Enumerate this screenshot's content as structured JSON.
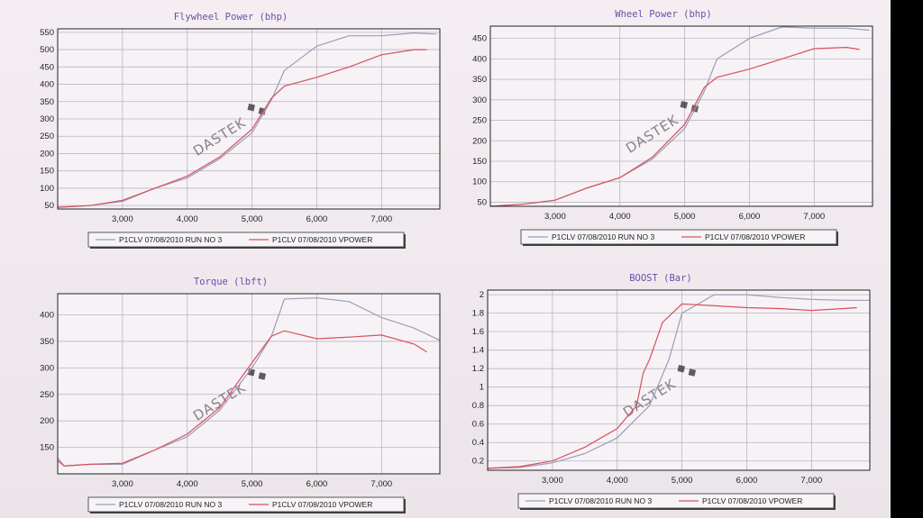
{
  "watermark": "DASTEK",
  "series_colors": {
    "P1CLV 07/08/2010 RUN NO 3": "#9a9fb8",
    "P1CLV 07/08/2010 VPOWER": "#d8505a"
  },
  "chart_data": [
    {
      "type": "line",
      "title": "Flywheel Power (bhp)",
      "xlabel": "",
      "ylabel": "",
      "xlim": [
        2000,
        7900
      ],
      "ylim": [
        40,
        560
      ],
      "x_ticks": [
        3000,
        4000,
        5000,
        6000,
        7000
      ],
      "x_tick_labels": [
        "3,000",
        "4,000",
        "5,000",
        "6,000",
        "7,000"
      ],
      "y_ticks": [
        50,
        100,
        150,
        200,
        250,
        300,
        350,
        400,
        450,
        500,
        550
      ],
      "y_tick_labels": [
        "50",
        "100",
        "150",
        "200",
        "250",
        "300",
        "350",
        "400",
        "450",
        "500",
        "550"
      ],
      "grid": true,
      "legend_position": "bottom",
      "series": [
        {
          "name": "P1CLV 07/08/2010 RUN NO 3",
          "x": [
            2000,
            2500,
            3000,
            3500,
            4000,
            4500,
            5000,
            5300,
            5500,
            6000,
            6500,
            7000,
            7500,
            7850
          ],
          "y": [
            45,
            50,
            62,
            100,
            130,
            185,
            260,
            355,
            440,
            510,
            540,
            540,
            548,
            545
          ]
        },
        {
          "name": "P1CLV 07/08/2010 VPOWER",
          "x": [
            2000,
            2500,
            3000,
            3500,
            4000,
            4500,
            5000,
            5300,
            5500,
            6000,
            6500,
            7000,
            7500,
            7700
          ],
          "y": [
            45,
            50,
            65,
            100,
            135,
            190,
            270,
            360,
            395,
            420,
            450,
            485,
            500,
            500
          ]
        }
      ]
    },
    {
      "type": "line",
      "title": "Wheel Power (bhp)",
      "xlabel": "",
      "ylabel": "",
      "xlim": [
        2000,
        7900
      ],
      "ylim": [
        40,
        480
      ],
      "x_ticks": [
        3000,
        4000,
        5000,
        6000,
        7000
      ],
      "x_tick_labels": [
        "3,000",
        "4,000",
        "5,000",
        "6,000",
        "7,000"
      ],
      "y_ticks": [
        50,
        100,
        150,
        200,
        250,
        300,
        350,
        400,
        450
      ],
      "y_tick_labels": [
        "50",
        "100",
        "150",
        "200",
        "250",
        "300",
        "350",
        "400",
        "450"
      ],
      "grid": true,
      "legend_position": "bottom",
      "series": [
        {
          "name": "P1CLV 07/08/2010 RUN NO 3",
          "x": [
            2000,
            2500,
            3000,
            3500,
            4000,
            4500,
            5000,
            5300,
            5500,
            6000,
            6500,
            7000,
            7500,
            7850
          ],
          "y": [
            40,
            45,
            55,
            85,
            110,
            155,
            230,
            320,
            400,
            450,
            478,
            475,
            475,
            470
          ]
        },
        {
          "name": "P1CLV 07/08/2010 VPOWER",
          "x": [
            2000,
            2500,
            3000,
            3500,
            4000,
            4500,
            5000,
            5300,
            5500,
            6000,
            6500,
            7000,
            7500,
            7700
          ],
          "y": [
            40,
            45,
            55,
            85,
            110,
            160,
            240,
            330,
            355,
            375,
            400,
            425,
            428,
            423
          ]
        }
      ]
    },
    {
      "type": "line",
      "title": "Torque (lbft)",
      "xlabel": "",
      "ylabel": "",
      "xlim": [
        2000,
        7900
      ],
      "ylim": [
        100,
        440
      ],
      "x_ticks": [
        3000,
        4000,
        5000,
        6000,
        7000
      ],
      "x_tick_labels": [
        "3,000",
        "4,000",
        "5,000",
        "6,000",
        "7,000"
      ],
      "y_ticks": [
        150,
        200,
        250,
        300,
        350,
        400
      ],
      "y_tick_labels": [
        "150",
        "200",
        "250",
        "300",
        "350",
        "400"
      ],
      "grid": true,
      "legend_position": "bottom",
      "series": [
        {
          "name": "P1CLV 07/08/2010 RUN NO 3",
          "x": [
            2000,
            2100,
            2500,
            3000,
            3500,
            4000,
            4500,
            5000,
            5300,
            5500,
            6000,
            6500,
            7000,
            7500,
            7900
          ],
          "y": [
            130,
            115,
            118,
            118,
            145,
            170,
            220,
            300,
            360,
            430,
            432,
            425,
            395,
            375,
            352
          ]
        },
        {
          "name": "P1CLV 07/08/2010 VPOWER",
          "x": [
            2000,
            2100,
            2500,
            3000,
            3500,
            4000,
            4500,
            5000,
            5300,
            5500,
            6000,
            6500,
            7000,
            7500,
            7700
          ],
          "y": [
            125,
            115,
            118,
            120,
            145,
            175,
            225,
            310,
            360,
            370,
            355,
            358,
            362,
            345,
            330
          ]
        }
      ]
    },
    {
      "type": "line",
      "title": "BOOST (Bar)",
      "xlabel": "",
      "ylabel": "",
      "xlim": [
        2000,
        7900
      ],
      "ylim": [
        0.1,
        2.05
      ],
      "x_ticks": [
        3000,
        4000,
        5000,
        6000,
        7000
      ],
      "x_tick_labels": [
        "3,000",
        "4,000",
        "5,000",
        "6,000",
        "7,000"
      ],
      "y_ticks": [
        0.2,
        0.4,
        0.6,
        0.8,
        1.0,
        1.2,
        1.4,
        1.6,
        1.8,
        2.0
      ],
      "y_tick_labels": [
        "0.2",
        "0.4",
        "0.6",
        "0.8",
        "1",
        "1.2",
        "1.4",
        "1.6",
        "1.8",
        "2"
      ],
      "grid": true,
      "legend_position": "bottom",
      "series": [
        {
          "name": "P1CLV 07/08/2010 RUN NO 3",
          "x": [
            2000,
            2500,
            3000,
            3500,
            4000,
            4500,
            4800,
            5000,
            5500,
            6000,
            6500,
            7000,
            7500,
            7900
          ],
          "y": [
            0.12,
            0.13,
            0.18,
            0.28,
            0.45,
            0.8,
            1.3,
            1.8,
            2.0,
            2.0,
            1.97,
            1.95,
            1.94,
            1.94
          ]
        },
        {
          "name": "P1CLV 07/08/2010 VPOWER",
          "x": [
            2000,
            2500,
            3000,
            3500,
            4000,
            4300,
            4400,
            4500,
            4700,
            5000,
            5500,
            6000,
            6500,
            7000,
            7500,
            7700
          ],
          "y": [
            0.12,
            0.14,
            0.2,
            0.35,
            0.55,
            0.8,
            1.15,
            1.3,
            1.7,
            1.9,
            1.88,
            1.86,
            1.85,
            1.83,
            1.85,
            1.86
          ]
        }
      ]
    }
  ]
}
